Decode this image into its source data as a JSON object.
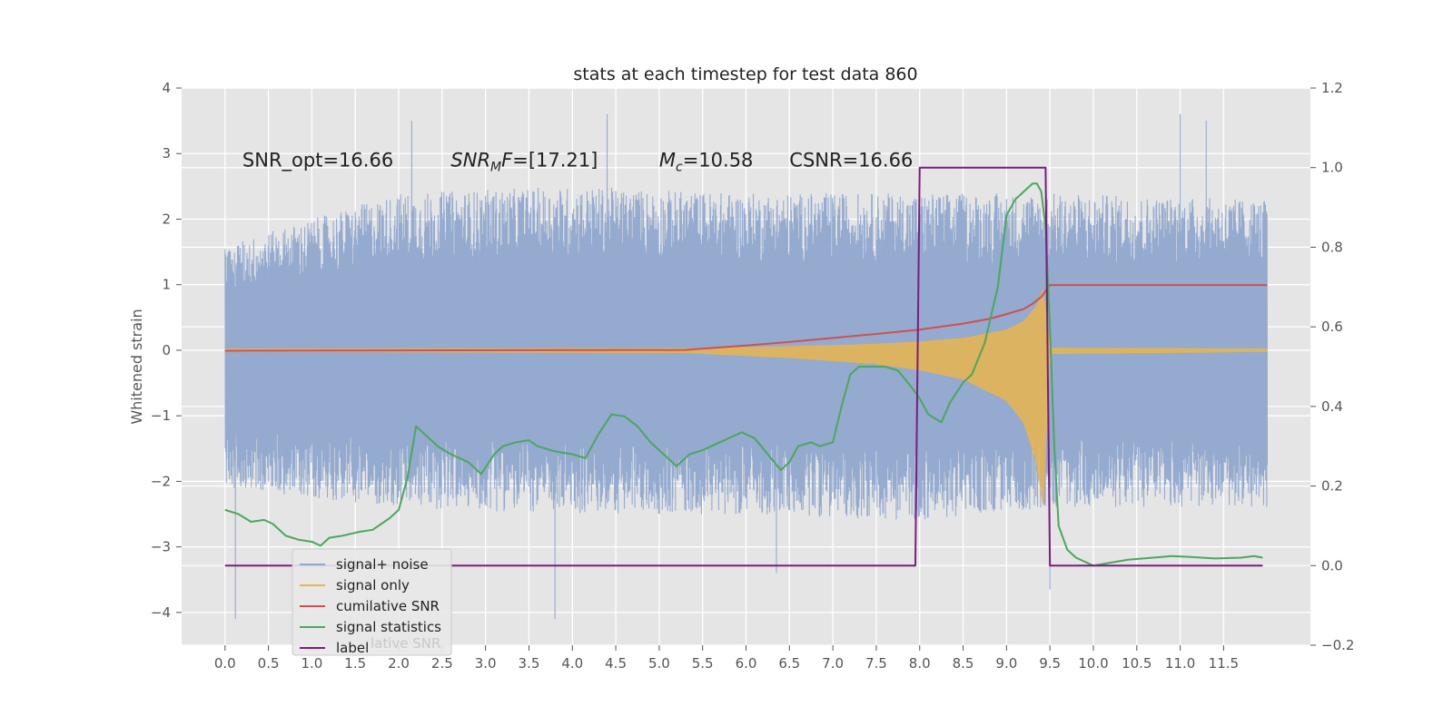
{
  "chart_data": {
    "type": "line",
    "title": "stats at each timestep for test data 860",
    "ylabel": "Whitened strain",
    "ylabel_right": "",
    "xlim": [
      -0.5,
      12.5
    ],
    "ylim_left": [
      -4.5,
      4.0
    ],
    "ylim_right": [
      -0.2,
      1.2
    ],
    "x_ticks": [
      0.0,
      0.5,
      1.0,
      1.5,
      2.0,
      2.5,
      3.0,
      3.5,
      4.0,
      4.5,
      5.0,
      5.5,
      6.0,
      6.5,
      7.0,
      7.5,
      8.0,
      8.5,
      9.0,
      9.5,
      10.0,
      10.5,
      11.0,
      11.5
    ],
    "x_tick_labels": [
      "0.0",
      "0.5",
      "1.0",
      "1.5",
      "2.0",
      "2.5",
      "3.0",
      "3.5",
      "4.0",
      "4.5",
      "5.0",
      "5.5",
      "6.0",
      "6.5",
      "7.0",
      "7.5",
      "8.0",
      "8.5",
      "9.0",
      "9.5",
      "10.0",
      "10.5",
      "11.0",
      "11.5"
    ],
    "y_ticks_left": [
      -4,
      -3,
      -2,
      -1,
      0,
      1,
      2,
      3,
      4
    ],
    "y_tick_labels_left": [
      "−4",
      "−3",
      "−2",
      "−1",
      "0",
      "1",
      "2",
      "3",
      "4"
    ],
    "y_ticks_right": [
      -0.2,
      0.0,
      0.2,
      0.4,
      0.6,
      0.8,
      1.0,
      1.2
    ],
    "y_tick_labels_right": [
      "−0.2",
      "0.0",
      "0.2",
      "0.4",
      "0.6",
      "0.8",
      "1.0",
      "1.2"
    ],
    "grid": true,
    "legend_position": "lower-left",
    "annotations": [
      {
        "text": "SNR_opt=16.66",
        "x": 0.2,
        "y": 2.9,
        "italic": false
      },
      {
        "text": "SNR_MF=[17.21]",
        "main": "SNR",
        "sub": "M",
        "after": "F=[17.21]",
        "x": 2.6,
        "y": 2.9,
        "italic": true
      },
      {
        "text": "M_c=10.58",
        "main": "M",
        "sub": "c",
        "after": "=10.58",
        "x": 5.0,
        "y": 2.9,
        "italic": true
      },
      {
        "text": "CSNR=16.66",
        "x": 6.5,
        "y": 2.9,
        "italic": false
      }
    ],
    "series": [
      {
        "name": "signal+ noise",
        "axis": "left",
        "kind": "noise",
        "color": "#8fa6cd",
        "x_range": [
          0.0,
          12.0
        ],
        "envelope": [
          [
            0.0,
            1.6,
            -2.1
          ],
          [
            2.0,
            2.4,
            -2.4
          ],
          [
            4.0,
            2.5,
            -2.5
          ],
          [
            6.0,
            2.4,
            -2.5
          ],
          [
            8.0,
            2.4,
            -2.6
          ],
          [
            9.5,
            2.4,
            -2.4
          ],
          [
            12.0,
            2.3,
            -2.4
          ]
        ],
        "outliers": [
          [
            0.12,
            -4.1
          ],
          [
            2.15,
            3.5
          ],
          [
            3.8,
            -4.1
          ],
          [
            4.4,
            3.6
          ],
          [
            6.0,
            -1.2
          ],
          [
            6.35,
            -3.4
          ],
          [
            9.5,
            -3.65
          ],
          [
            11.0,
            3.6
          ],
          [
            11.3,
            3.5
          ]
        ]
      },
      {
        "name": "signal only",
        "axis": "left",
        "kind": "chirp",
        "color": "#e8b54d",
        "x": [
          0.0,
          5.3,
          6.5,
          7.5,
          8.0,
          8.5,
          9.0,
          9.2,
          9.35,
          9.42,
          9.48,
          9.5,
          12.0
        ],
        "amplitude": [
          0.0,
          0.01,
          0.06,
          0.12,
          0.18,
          0.27,
          0.48,
          0.7,
          1.1,
          1.5,
          0.4,
          0.02,
          0.0
        ]
      },
      {
        "name": "cumilative SNR",
        "axis": "right",
        "color": "#d0504f",
        "x": [
          0.0,
          5.3,
          6.0,
          6.5,
          7.0,
          7.5,
          8.0,
          8.5,
          8.8,
          9.0,
          9.2,
          9.3,
          9.4,
          9.45,
          9.5,
          12.0
        ],
        "values": [
          0.54,
          0.542,
          0.553,
          0.562,
          0.572,
          0.582,
          0.593,
          0.608,
          0.62,
          0.632,
          0.645,
          0.658,
          0.675,
          0.69,
          0.705,
          0.705
        ]
      },
      {
        "name": "signal statistics",
        "axis": "right",
        "color": "#4aa85c",
        "x": [
          0.0,
          0.15,
          0.3,
          0.45,
          0.55,
          0.7,
          0.85,
          1.0,
          1.1,
          1.2,
          1.35,
          1.45,
          1.55,
          1.7,
          1.8,
          1.9,
          2.0,
          2.1,
          2.2,
          2.3,
          2.45,
          2.6,
          2.8,
          2.95,
          3.1,
          3.2,
          3.35,
          3.5,
          3.6,
          3.75,
          3.85,
          4.0,
          4.15,
          4.3,
          4.45,
          4.6,
          4.75,
          4.9,
          5.05,
          5.2,
          5.35,
          5.5,
          5.6,
          5.7,
          5.8,
          5.95,
          6.1,
          6.25,
          6.4,
          6.5,
          6.6,
          6.75,
          6.85,
          7.0,
          7.1,
          7.2,
          7.3,
          7.4,
          7.5,
          7.6,
          7.75,
          7.9,
          8.0,
          8.1,
          8.25,
          8.35,
          8.5,
          8.6,
          8.75,
          8.9,
          9.0,
          9.1,
          9.2,
          9.3,
          9.35,
          9.4,
          9.45,
          9.5,
          9.55,
          9.6,
          9.7,
          9.8,
          10.0,
          10.4,
          10.8,
          10.9,
          11.1,
          11.4,
          11.7,
          11.85,
          11.95
        ],
        "values": [
          0.14,
          0.13,
          0.11,
          0.115,
          0.105,
          0.075,
          0.065,
          0.06,
          0.05,
          0.07,
          0.075,
          0.08,
          0.085,
          0.09,
          0.105,
          0.12,
          0.14,
          0.22,
          0.35,
          0.33,
          0.3,
          0.28,
          0.26,
          0.23,
          0.28,
          0.3,
          0.31,
          0.315,
          0.3,
          0.29,
          0.285,
          0.28,
          0.27,
          0.33,
          0.38,
          0.375,
          0.35,
          0.31,
          0.28,
          0.25,
          0.28,
          0.29,
          0.3,
          0.31,
          0.32,
          0.335,
          0.32,
          0.28,
          0.24,
          0.26,
          0.3,
          0.31,
          0.3,
          0.31,
          0.4,
          0.48,
          0.5,
          0.5,
          0.5,
          0.5,
          0.49,
          0.45,
          0.42,
          0.38,
          0.36,
          0.41,
          0.46,
          0.48,
          0.56,
          0.7,
          0.88,
          0.92,
          0.94,
          0.96,
          0.96,
          0.94,
          0.85,
          0.6,
          0.3,
          0.1,
          0.04,
          0.02,
          0.0,
          0.015,
          0.022,
          0.024,
          0.022,
          0.018,
          0.02,
          0.024,
          0.02
        ]
      },
      {
        "name": "label",
        "axis": "right",
        "color": "#7c1d7e",
        "x": [
          0.0,
          7.95,
          8.0,
          9.45,
          9.5,
          11.95
        ],
        "values": [
          0.0,
          0.0,
          1.0,
          1.0,
          0.0,
          0.0
        ]
      }
    ],
    "legend_overlap_text": "lative SNR"
  },
  "colors": {
    "plot_background": "#e5e5e5",
    "grid": "#ffffff",
    "tick_color": "#555555"
  }
}
